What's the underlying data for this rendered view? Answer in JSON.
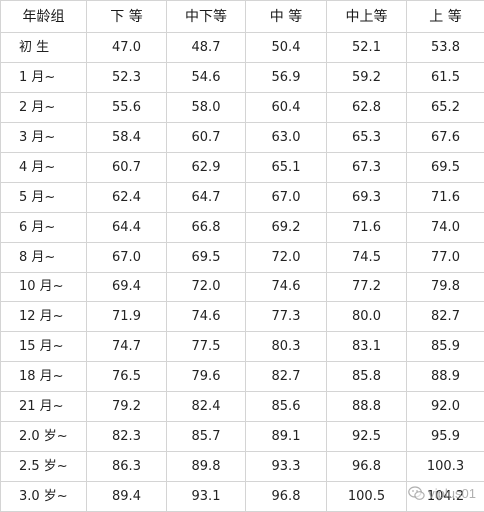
{
  "table": {
    "headers": [
      "年龄组",
      "下 等",
      "中下等",
      "中 等",
      "中上等",
      "上 等"
    ],
    "rows": [
      [
        "初 生",
        "47.0",
        "48.7",
        "50.4",
        "52.1",
        "53.8"
      ],
      [
        "1 月~",
        "52.3",
        "54.6",
        "56.9",
        "59.2",
        "61.5"
      ],
      [
        "2 月~",
        "55.6",
        "58.0",
        "60.4",
        "62.8",
        "65.2"
      ],
      [
        "3 月~",
        "58.4",
        "60.7",
        "63.0",
        "65.3",
        "67.6"
      ],
      [
        "4 月~",
        "60.7",
        "62.9",
        "65.1",
        "67.3",
        "69.5"
      ],
      [
        "5 月~",
        "62.4",
        "64.7",
        "67.0",
        "69.3",
        "71.6"
      ],
      [
        "6 月~",
        "64.4",
        "66.8",
        "69.2",
        "71.6",
        "74.0"
      ],
      [
        "8 月~",
        "67.0",
        "69.5",
        "72.0",
        "74.5",
        "77.0"
      ],
      [
        "10 月~",
        "69.4",
        "72.0",
        "74.6",
        "77.2",
        "79.8"
      ],
      [
        "12 月~",
        "71.9",
        "74.6",
        "77.3",
        "80.0",
        "82.7"
      ],
      [
        "15 月~",
        "74.7",
        "77.5",
        "80.3",
        "83.1",
        "85.9"
      ],
      [
        "18 月~",
        "76.5",
        "79.6",
        "82.7",
        "85.8",
        "88.9"
      ],
      [
        "21 月~",
        "79.2",
        "82.4",
        "85.6",
        "88.8",
        "92.0"
      ],
      [
        "2.0 岁~",
        "82.3",
        "85.7",
        "89.1",
        "92.5",
        "95.9"
      ],
      [
        "2.5 岁~",
        "86.3",
        "89.8",
        "93.3",
        "96.8",
        "100.3"
      ],
      [
        "3.0 岁~",
        "89.4",
        "93.1",
        "96.8",
        "100.5",
        "104.2"
      ]
    ]
  },
  "watermark": {
    "text": "viplus01",
    "icon": "wechat-icon"
  }
}
